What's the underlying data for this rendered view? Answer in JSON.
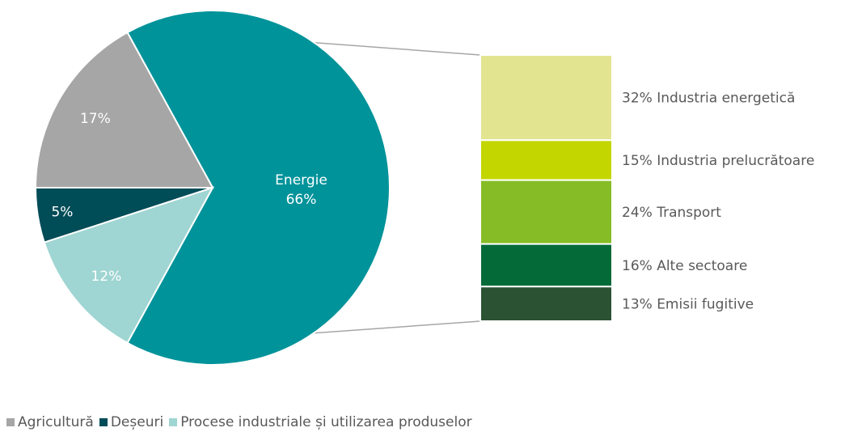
{
  "chart_data": {
    "type": "bar-of-pie",
    "pie": {
      "slices": [
        {
          "name": "Energie",
          "label": "Energie",
          "value": 66,
          "value_label": "66%",
          "color": "#00939A"
        },
        {
          "name": "Agricultură",
          "label": "",
          "value": 17,
          "value_label": "17%",
          "color": "#A6A6A6"
        },
        {
          "name": "Deșeuri",
          "label": "",
          "value": 5,
          "value_label": "5%",
          "color": "#004C57"
        },
        {
          "name": "Procese industriale și utilizarea produselor",
          "label": "",
          "value": 12,
          "value_label": "12%",
          "color": "#9FD5D2"
        }
      ]
    },
    "bar": {
      "breakdown_of": "Energie",
      "segments": [
        {
          "name": "Industria energetică",
          "value": 32,
          "label": "32% Industria energetică",
          "color": "#E3E490"
        },
        {
          "name": "Industria prelucrătoare",
          "value": 15,
          "label": "15% Industria prelucrătoare",
          "color": "#C4D600"
        },
        {
          "name": "Transport",
          "value": 24,
          "label": "24% Transport",
          "color": "#86BC25"
        },
        {
          "name": "Alte sectoare",
          "value": 16,
          "label": "16% Alte sectoare",
          "color": "#046A38"
        },
        {
          "name": "Emisii fugitive",
          "value": 13,
          "label": "13% Emisii fugitive",
          "color": "#2C5234"
        }
      ]
    },
    "legend": {
      "position": "bottom-left",
      "items": [
        {
          "label": "Agricultură",
          "color": "#A6A6A6"
        },
        {
          "label": "Deșeuri",
          "color": "#004C57"
        },
        {
          "label": "Procese industriale și utilizarea produselor",
          "color": "#9FD5D2"
        }
      ]
    }
  }
}
